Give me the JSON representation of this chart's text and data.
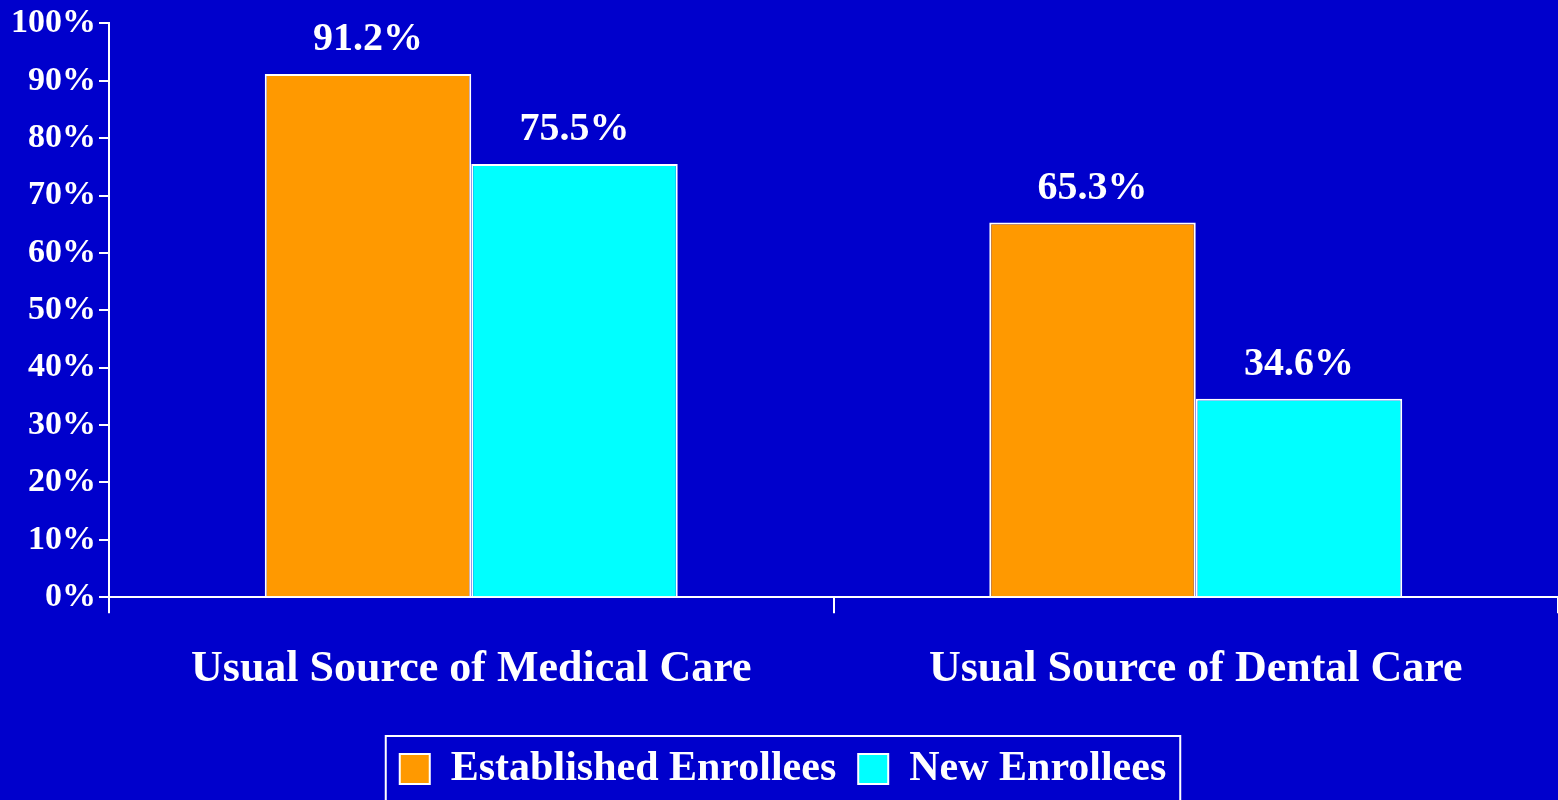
{
  "chart_data": {
    "type": "bar",
    "categories": [
      "Usual Source of Medical Care",
      "Usual Source of Dental Care"
    ],
    "series": [
      {
        "name": "Established Enrollees",
        "color": "#ff9900",
        "values": [
          91.2,
          65.3
        ],
        "value_labels": [
          "91.2%",
          "65.3%"
        ]
      },
      {
        "name": "New Enrollees",
        "color": "#00ffff",
        "values": [
          75.5,
          34.6
        ],
        "value_labels": [
          "75.5%",
          "34.6%"
        ]
      }
    ],
    "ylim": [
      0,
      100
    ],
    "yticks": [
      {
        "value": 0,
        "label": "0%"
      },
      {
        "value": 10,
        "label": "10%"
      },
      {
        "value": 20,
        "label": "20%"
      },
      {
        "value": 30,
        "label": "30%"
      },
      {
        "value": 40,
        "label": "40%"
      },
      {
        "value": 50,
        "label": "50%"
      },
      {
        "value": 60,
        "label": "60%"
      },
      {
        "value": 70,
        "label": "70%"
      },
      {
        "value": 80,
        "label": "80%"
      },
      {
        "value": 90,
        "label": "90%"
      },
      {
        "value": 100,
        "label": "100%"
      }
    ],
    "grid": false,
    "legend": "bottom"
  }
}
